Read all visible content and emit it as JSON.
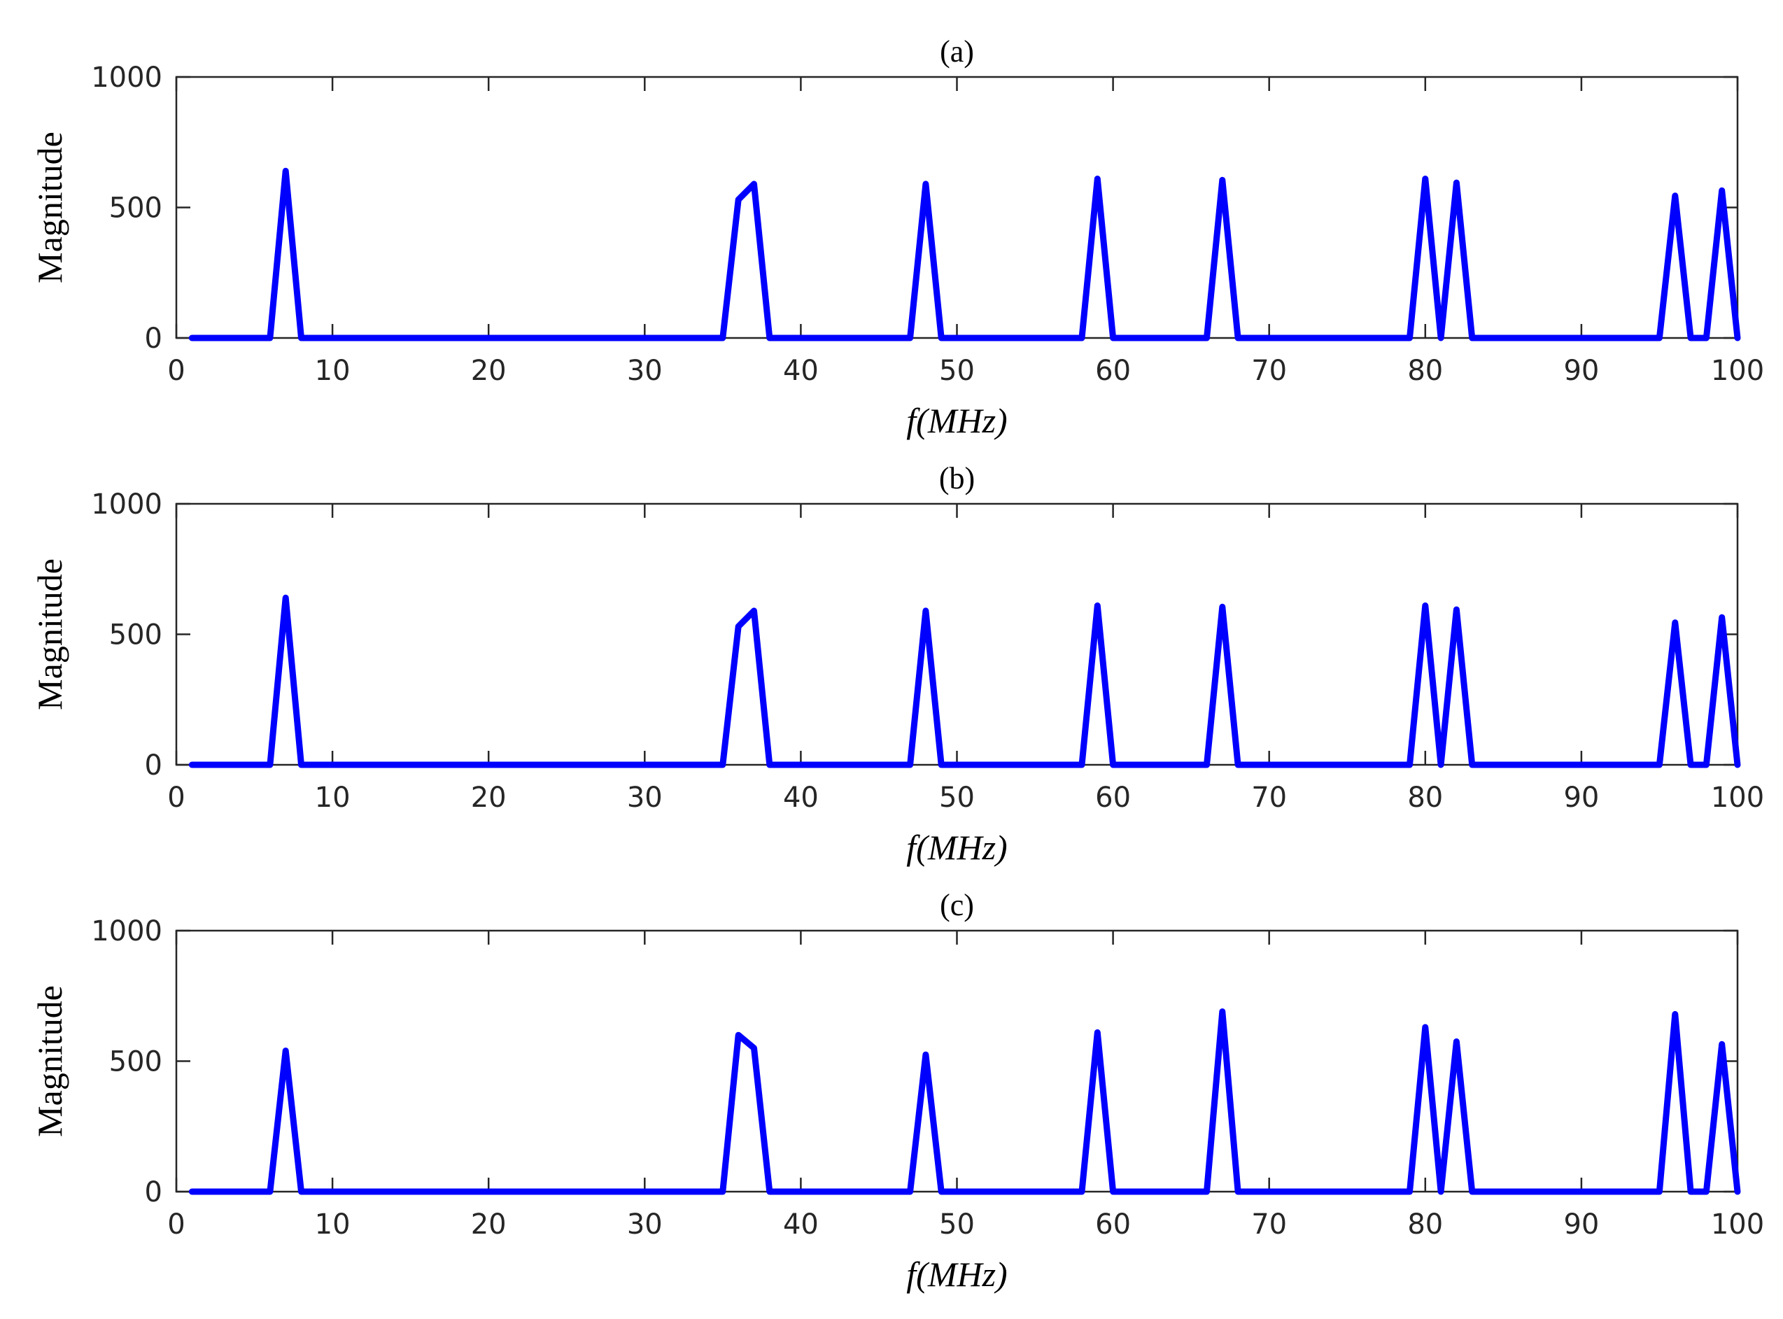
{
  "chart_data": [
    {
      "type": "line",
      "title": "(a)",
      "xlabel": "f(MHz)",
      "ylabel": "Magnitude",
      "xlim": [
        0,
        100
      ],
      "ylim": [
        0,
        1000
      ],
      "xticks": [
        0,
        10,
        20,
        30,
        40,
        50,
        60,
        70,
        80,
        90,
        100
      ],
      "yticks": [
        0,
        500,
        1000
      ],
      "grid": false,
      "color": "#0000ff",
      "x": [
        1,
        2,
        3,
        4,
        5,
        6,
        7,
        8,
        9,
        10,
        11,
        12,
        13,
        14,
        15,
        16,
        17,
        18,
        19,
        20,
        21,
        22,
        23,
        24,
        25,
        26,
        27,
        28,
        29,
        30,
        31,
        32,
        33,
        34,
        35,
        36,
        37,
        38,
        39,
        40,
        41,
        42,
        43,
        44,
        45,
        46,
        47,
        48,
        49,
        50,
        51,
        52,
        53,
        54,
        55,
        56,
        57,
        58,
        59,
        60,
        61,
        62,
        63,
        64,
        65,
        66,
        67,
        68,
        69,
        70,
        71,
        72,
        73,
        74,
        75,
        76,
        77,
        78,
        79,
        80,
        81,
        82,
        83,
        84,
        85,
        86,
        87,
        88,
        89,
        90,
        91,
        92,
        93,
        94,
        95,
        96,
        97,
        98,
        99,
        100
      ],
      "values": [
        0,
        0,
        0,
        0,
        0,
        0,
        640,
        0,
        0,
        0,
        0,
        0,
        0,
        0,
        0,
        0,
        0,
        0,
        0,
        0,
        0,
        0,
        0,
        0,
        0,
        0,
        0,
        0,
        0,
        0,
        0,
        0,
        0,
        0,
        0,
        530,
        590,
        0,
        0,
        0,
        0,
        0,
        0,
        0,
        0,
        0,
        0,
        590,
        0,
        0,
        0,
        0,
        0,
        0,
        0,
        0,
        0,
        0,
        610,
        0,
        0,
        0,
        0,
        0,
        0,
        0,
        605,
        0,
        0,
        0,
        0,
        0,
        0,
        0,
        0,
        0,
        0,
        0,
        0,
        610,
        0,
        595,
        0,
        0,
        0,
        0,
        0,
        0,
        0,
        0,
        0,
        0,
        0,
        0,
        0,
        545,
        0,
        0,
        565,
        0
      ]
    },
    {
      "type": "line",
      "title": "(b)",
      "xlabel": "f(MHz)",
      "ylabel": "Magnitude",
      "xlim": [
        0,
        100
      ],
      "ylim": [
        0,
        1000
      ],
      "xticks": [
        0,
        10,
        20,
        30,
        40,
        50,
        60,
        70,
        80,
        90,
        100
      ],
      "yticks": [
        0,
        500,
        1000
      ],
      "grid": false,
      "color": "#0000ff",
      "x": [
        1,
        2,
        3,
        4,
        5,
        6,
        7,
        8,
        9,
        10,
        11,
        12,
        13,
        14,
        15,
        16,
        17,
        18,
        19,
        20,
        21,
        22,
        23,
        24,
        25,
        26,
        27,
        28,
        29,
        30,
        31,
        32,
        33,
        34,
        35,
        36,
        37,
        38,
        39,
        40,
        41,
        42,
        43,
        44,
        45,
        46,
        47,
        48,
        49,
        50,
        51,
        52,
        53,
        54,
        55,
        56,
        57,
        58,
        59,
        60,
        61,
        62,
        63,
        64,
        65,
        66,
        67,
        68,
        69,
        70,
        71,
        72,
        73,
        74,
        75,
        76,
        77,
        78,
        79,
        80,
        81,
        82,
        83,
        84,
        85,
        86,
        87,
        88,
        89,
        90,
        91,
        92,
        93,
        94,
        95,
        96,
        97,
        98,
        99,
        100
      ],
      "values": [
        0,
        0,
        0,
        0,
        0,
        0,
        640,
        0,
        0,
        0,
        0,
        0,
        0,
        0,
        0,
        0,
        0,
        0,
        0,
        0,
        0,
        0,
        0,
        0,
        0,
        0,
        0,
        0,
        0,
        0,
        0,
        0,
        0,
        0,
        0,
        530,
        590,
        0,
        0,
        0,
        0,
        0,
        0,
        0,
        0,
        0,
        0,
        590,
        0,
        0,
        0,
        0,
        0,
        0,
        0,
        0,
        0,
        0,
        610,
        0,
        0,
        0,
        0,
        0,
        0,
        0,
        605,
        0,
        0,
        0,
        0,
        0,
        0,
        0,
        0,
        0,
        0,
        0,
        0,
        610,
        0,
        595,
        0,
        0,
        0,
        0,
        0,
        0,
        0,
        0,
        0,
        0,
        0,
        0,
        0,
        545,
        0,
        0,
        565,
        0
      ]
    },
    {
      "type": "line",
      "title": "(c)",
      "xlabel": "f(MHz)",
      "ylabel": "Magnitude",
      "xlim": [
        0,
        100
      ],
      "ylim": [
        0,
        1000
      ],
      "xticks": [
        0,
        10,
        20,
        30,
        40,
        50,
        60,
        70,
        80,
        90,
        100
      ],
      "yticks": [
        0,
        500,
        1000
      ],
      "grid": false,
      "color": "#0000ff",
      "x": [
        1,
        2,
        3,
        4,
        5,
        6,
        7,
        8,
        9,
        10,
        11,
        12,
        13,
        14,
        15,
        16,
        17,
        18,
        19,
        20,
        21,
        22,
        23,
        24,
        25,
        26,
        27,
        28,
        29,
        30,
        31,
        32,
        33,
        34,
        35,
        36,
        37,
        38,
        39,
        40,
        41,
        42,
        43,
        44,
        45,
        46,
        47,
        48,
        49,
        50,
        51,
        52,
        53,
        54,
        55,
        56,
        57,
        58,
        59,
        60,
        61,
        62,
        63,
        64,
        65,
        66,
        67,
        68,
        69,
        70,
        71,
        72,
        73,
        74,
        75,
        76,
        77,
        78,
        79,
        80,
        81,
        82,
        83,
        84,
        85,
        86,
        87,
        88,
        89,
        90,
        91,
        92,
        93,
        94,
        95,
        96,
        97,
        98,
        99,
        100
      ],
      "values": [
        0,
        0,
        0,
        0,
        0,
        0,
        540,
        0,
        0,
        0,
        0,
        0,
        0,
        0,
        0,
        0,
        0,
        0,
        0,
        0,
        0,
        0,
        0,
        0,
        0,
        0,
        0,
        0,
        0,
        0,
        0,
        0,
        0,
        0,
        0,
        600,
        550,
        0,
        0,
        0,
        0,
        0,
        0,
        0,
        0,
        0,
        0,
        525,
        0,
        0,
        0,
        0,
        0,
        0,
        0,
        0,
        0,
        0,
        610,
        0,
        0,
        0,
        0,
        0,
        0,
        0,
        690,
        0,
        0,
        0,
        0,
        0,
        0,
        0,
        0,
        0,
        0,
        0,
        0,
        630,
        0,
        575,
        0,
        0,
        0,
        0,
        0,
        0,
        0,
        0,
        0,
        0,
        0,
        0,
        0,
        680,
        0,
        0,
        565,
        0
      ]
    }
  ]
}
